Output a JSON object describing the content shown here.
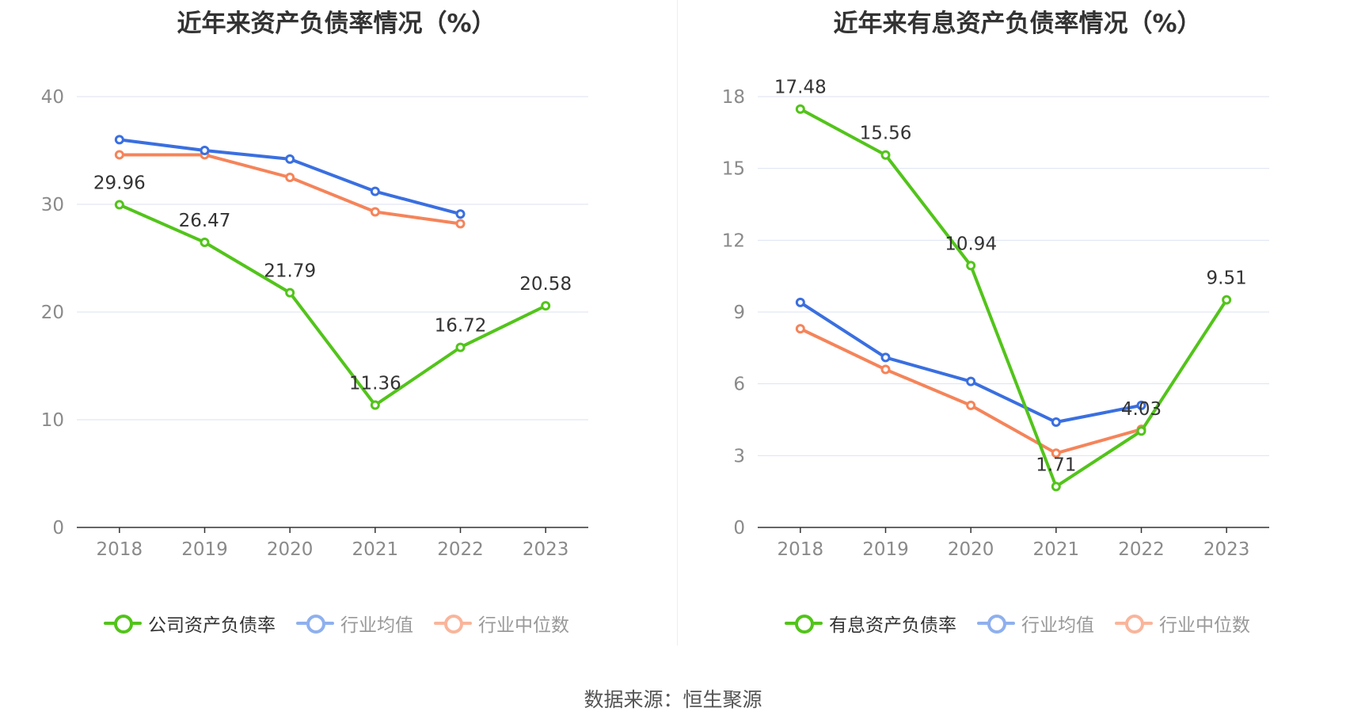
{
  "source": "数据来源：恒生聚源",
  "colors": {
    "company": "#52c41a",
    "avg": "#3a6fe0",
    "median": "#f5845a",
    "avg_legend": "#8fb0ee",
    "median_legend": "#f9b59b",
    "grid": "#dde2f2",
    "axis": "#333333"
  },
  "chart_data": [
    {
      "type": "line",
      "title": "近年来资产负债率情况（%）",
      "categories": [
        "2018",
        "2019",
        "2020",
        "2021",
        "2022",
        "2023"
      ],
      "ylim": [
        0,
        40
      ],
      "yticks": [
        0,
        10,
        20,
        30,
        40
      ],
      "grid": true,
      "legend_position": "bottom",
      "series": [
        {
          "name": "公司资产负债率",
          "values": [
            29.96,
            26.47,
            21.79,
            11.36,
            16.72,
            20.58
          ],
          "labels": true
        },
        {
          "name": "行业均值",
          "values": [
            36.0,
            35.0,
            34.2,
            31.2,
            29.1,
            null
          ]
        },
        {
          "name": "行业中位数",
          "values": [
            34.6,
            34.6,
            32.5,
            29.3,
            28.2,
            null
          ]
        }
      ]
    },
    {
      "type": "line",
      "title": "近年来有息资产负债率情况（%）",
      "categories": [
        "2018",
        "2019",
        "2020",
        "2021",
        "2022",
        "2023"
      ],
      "ylim": [
        0,
        18
      ],
      "yticks": [
        0,
        3,
        6,
        9,
        12,
        15,
        18
      ],
      "grid": true,
      "legend_position": "bottom",
      "series": [
        {
          "name": "有息资产负债率",
          "values": [
            17.48,
            15.56,
            10.94,
            1.71,
            4.03,
            9.51
          ],
          "labels": true
        },
        {
          "name": "行业均值",
          "values": [
            9.4,
            7.1,
            6.1,
            4.4,
            5.1,
            null
          ]
        },
        {
          "name": "行业中位数",
          "values": [
            8.3,
            6.6,
            5.1,
            3.1,
            4.1,
            null
          ]
        }
      ]
    }
  ]
}
